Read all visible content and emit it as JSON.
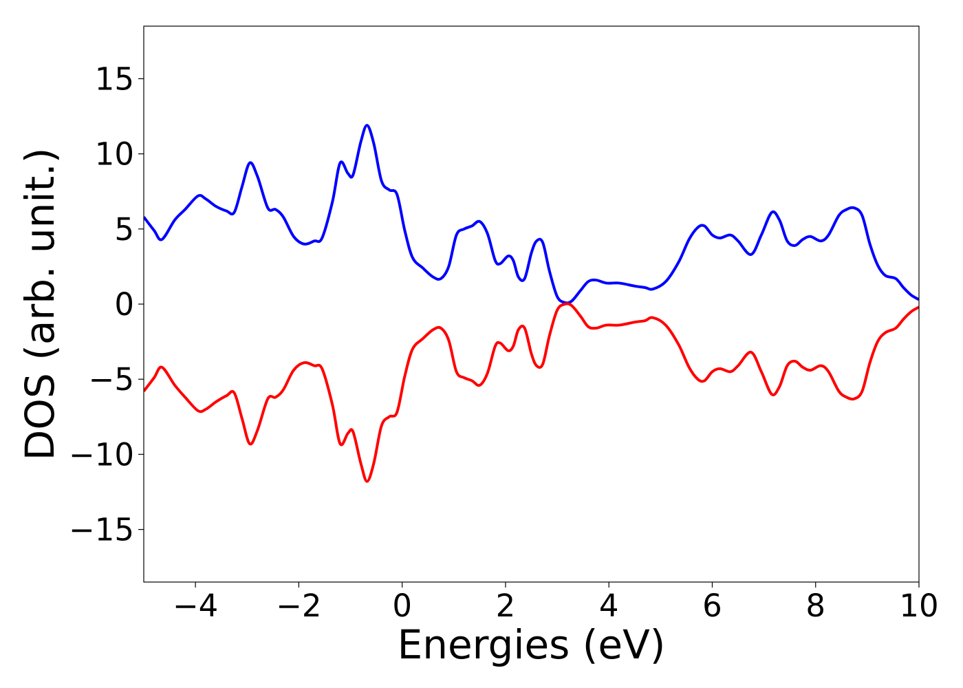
{
  "chart_data": {
    "type": "line",
    "xlabel": "Energies (eV)",
    "ylabel": "DOS (arb. unit.)",
    "xlim": [
      -5,
      10
    ],
    "ylim": [
      -18.5,
      18.5
    ],
    "xticks": [
      -4,
      -2,
      0,
      2,
      4,
      6,
      8,
      10
    ],
    "xtick_labels": [
      "−4",
      "−2",
      "0",
      "2",
      "4",
      "6",
      "8",
      "10"
    ],
    "yticks": [
      15,
      10,
      5,
      0,
      -5,
      -10,
      -15
    ],
    "ytick_labels": [
      "15",
      "10",
      "5",
      "0",
      "−5",
      "−10",
      "−15"
    ],
    "grid": false,
    "series": [
      {
        "color": "#0000ff",
        "x": [
          -5.0,
          -4.8,
          -4.65,
          -4.4,
          -4.2,
          -3.95,
          -3.8,
          -3.6,
          -3.4,
          -3.25,
          -3.1,
          -2.95,
          -2.8,
          -2.6,
          -2.45,
          -2.3,
          -2.1,
          -1.9,
          -1.7,
          -1.55,
          -1.35,
          -1.2,
          -1.05,
          -0.95,
          -0.8,
          -0.68,
          -0.55,
          -0.4,
          -0.25,
          -0.1,
          0.05,
          0.2,
          0.4,
          0.6,
          0.75,
          0.9,
          1.05,
          1.2,
          1.35,
          1.5,
          1.65,
          1.8,
          1.9,
          2.05,
          2.15,
          2.25,
          2.37,
          2.5,
          2.6,
          2.72,
          2.85,
          3.0,
          3.15,
          3.28,
          3.45,
          3.6,
          3.75,
          3.95,
          4.2,
          4.5,
          4.7,
          4.85,
          5.1,
          5.35,
          5.55,
          5.72,
          5.85,
          6.0,
          6.15,
          6.35,
          6.5,
          6.75,
          6.95,
          7.15,
          7.3,
          7.45,
          7.6,
          7.75,
          7.9,
          8.1,
          8.25,
          8.45,
          8.6,
          8.75,
          8.9,
          9.05,
          9.2,
          9.35,
          9.55,
          9.7,
          9.85,
          10.0
        ],
        "y": [
          5.8,
          4.9,
          4.3,
          5.6,
          6.3,
          7.2,
          7.0,
          6.5,
          6.2,
          6.1,
          7.8,
          9.4,
          8.5,
          6.4,
          6.3,
          5.8,
          4.5,
          4.0,
          4.2,
          4.4,
          6.8,
          9.4,
          8.7,
          8.6,
          10.8,
          11.9,
          10.7,
          8.2,
          7.6,
          7.3,
          4.9,
          3.1,
          2.4,
          1.8,
          1.7,
          2.5,
          4.6,
          5.0,
          5.2,
          5.5,
          4.7,
          2.9,
          2.7,
          3.2,
          2.9,
          1.8,
          1.7,
          3.4,
          4.2,
          4.1,
          2.2,
          0.5,
          0.1,
          0.2,
          0.9,
          1.5,
          1.6,
          1.4,
          1.4,
          1.2,
          1.1,
          1.0,
          1.5,
          2.8,
          4.3,
          5.1,
          5.2,
          4.6,
          4.4,
          4.6,
          4.2,
          3.3,
          4.6,
          6.1,
          5.6,
          4.2,
          3.9,
          4.3,
          4.5,
          4.2,
          4.6,
          5.9,
          6.3,
          6.4,
          5.9,
          4.0,
          2.6,
          1.9,
          1.7,
          1.1,
          0.6,
          0.3
        ]
      },
      {
        "color": "#ff0000",
        "x": [
          -5.0,
          -4.8,
          -4.65,
          -4.4,
          -4.2,
          -3.95,
          -3.8,
          -3.6,
          -3.4,
          -3.25,
          -3.1,
          -2.95,
          -2.8,
          -2.6,
          -2.45,
          -2.3,
          -2.1,
          -1.9,
          -1.7,
          -1.55,
          -1.35,
          -1.2,
          -1.05,
          -0.95,
          -0.8,
          -0.68,
          -0.55,
          -0.4,
          -0.25,
          -0.1,
          0.05,
          0.2,
          0.4,
          0.6,
          0.75,
          0.9,
          1.05,
          1.2,
          1.35,
          1.5,
          1.65,
          1.8,
          1.9,
          2.05,
          2.15,
          2.25,
          2.37,
          2.5,
          2.6,
          2.72,
          2.85,
          3.0,
          3.15,
          3.28,
          3.45,
          3.6,
          3.75,
          3.95,
          4.2,
          4.5,
          4.7,
          4.85,
          5.1,
          5.35,
          5.55,
          5.72,
          5.85,
          6.0,
          6.15,
          6.35,
          6.5,
          6.75,
          6.95,
          7.15,
          7.3,
          7.45,
          7.6,
          7.75,
          7.9,
          8.1,
          8.25,
          8.45,
          8.6,
          8.75,
          8.9,
          9.05,
          9.2,
          9.35,
          9.55,
          9.7,
          9.85,
          10.0
        ],
        "y": [
          -5.8,
          -4.9,
          -4.2,
          -5.4,
          -6.2,
          -7.1,
          -7.0,
          -6.5,
          -6.1,
          -5.9,
          -7.6,
          -9.3,
          -8.4,
          -6.3,
          -6.2,
          -5.7,
          -4.4,
          -3.9,
          -4.1,
          -4.3,
          -6.7,
          -9.3,
          -8.6,
          -8.5,
          -10.6,
          -11.8,
          -10.6,
          -8.1,
          -7.5,
          -7.2,
          -4.8,
          -3.0,
          -2.3,
          -1.7,
          -1.6,
          -2.4,
          -4.5,
          -4.9,
          -5.1,
          -5.4,
          -4.6,
          -2.8,
          -2.6,
          -3.1,
          -2.8,
          -1.7,
          -1.6,
          -3.3,
          -4.1,
          -4.0,
          -2.1,
          -0.4,
          -0.0,
          -0.1,
          -0.8,
          -1.5,
          -1.6,
          -1.4,
          -1.4,
          -1.2,
          -1.1,
          -0.9,
          -1.4,
          -2.7,
          -4.2,
          -5.0,
          -5.1,
          -4.5,
          -4.3,
          -4.5,
          -4.1,
          -3.2,
          -4.5,
          -6.0,
          -5.5,
          -4.1,
          -3.8,
          -4.2,
          -4.4,
          -4.1,
          -4.5,
          -5.8,
          -6.2,
          -6.3,
          -5.8,
          -3.9,
          -2.5,
          -1.9,
          -1.6,
          -1.0,
          -0.5,
          -0.2
        ]
      }
    ]
  }
}
